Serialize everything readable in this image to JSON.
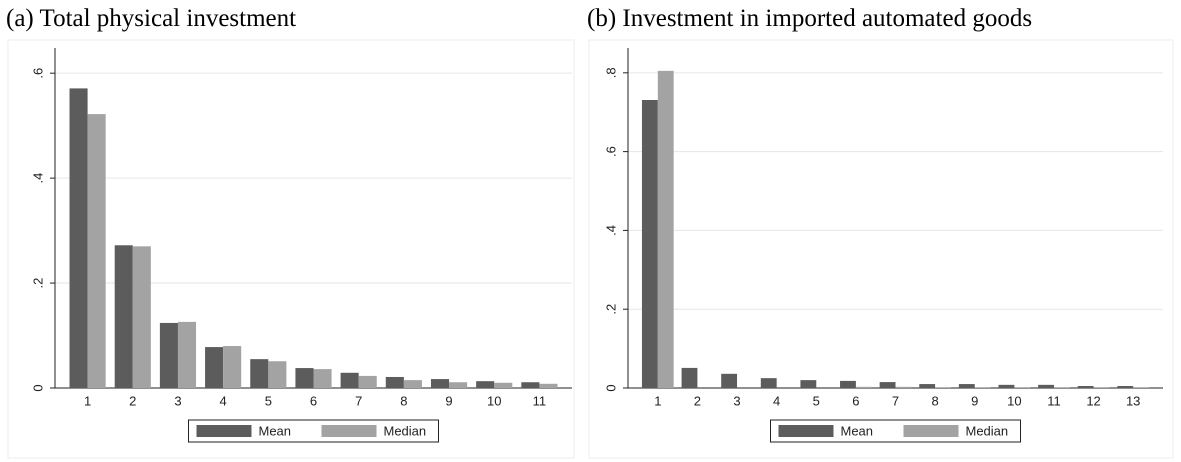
{
  "chart_data": [
    {
      "type": "bar",
      "title": "(a) Total physical investment",
      "categories": [
        "1",
        "2",
        "3",
        "4",
        "5",
        "6",
        "7",
        "8",
        "9",
        "10",
        "11"
      ],
      "series": [
        {
          "name": "Mean",
          "color": "#5c5c5c",
          "values": [
            0.571,
            0.272,
            0.124,
            0.078,
            0.055,
            0.038,
            0.029,
            0.021,
            0.017,
            0.013,
            0.011
          ]
        },
        {
          "name": "Median",
          "color": "#a3a3a3",
          "values": [
            0.522,
            0.27,
            0.126,
            0.08,
            0.051,
            0.036,
            0.023,
            0.015,
            0.011,
            0.01,
            0.008
          ]
        }
      ],
      "ylim": [
        0,
        0.648
      ],
      "yticks": [
        0,
        {
          "value": 0.2,
          "label": ".2"
        },
        {
          "value": 0.4,
          "label": ".4"
        },
        {
          "value": 0.6,
          "label": ".6"
        }
      ],
      "grid": true,
      "legend": "bottom"
    },
    {
      "type": "bar",
      "title": "(b) Investment in imported automated goods",
      "categories": [
        "1",
        "2",
        "3",
        "4",
        "5",
        "6",
        "7",
        "8",
        "9",
        "10",
        "11",
        "12",
        "13"
      ],
      "series": [
        {
          "name": "Mean",
          "color": "#5c5c5c",
          "values": [
            0.731,
            0.051,
            0.036,
            0.025,
            0.02,
            0.018,
            0.015,
            0.01,
            0.01,
            0.008,
            0.008,
            0.005,
            0.005
          ]
        },
        {
          "name": "Median",
          "color": "#a3a3a3",
          "values": [
            0.805,
            0,
            0,
            0,
            0,
            0.003,
            0.003,
            0.002,
            0.002,
            0.002,
            0.002,
            0.002,
            0.002
          ]
        }
      ],
      "ylim": [
        0,
        0.863
      ],
      "yticks": [
        0,
        {
          "value": 0.2,
          "label": ".2"
        },
        {
          "value": 0.4,
          "label": ".4"
        },
        {
          "value": 0.6,
          "label": ".6"
        },
        {
          "value": 0.8,
          "label": ".8"
        }
      ],
      "grid": true,
      "legend": "bottom"
    }
  ]
}
